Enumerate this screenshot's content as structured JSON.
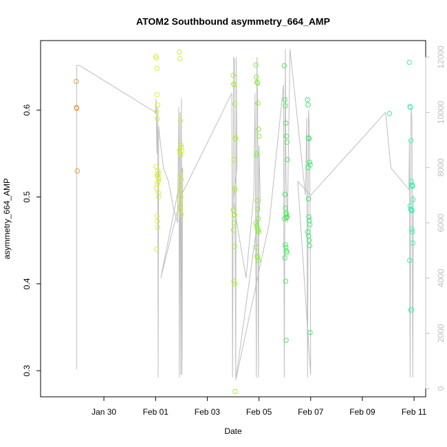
{
  "chart_data": {
    "type": "scatter",
    "title": "ATOM2 Southbound asymmetry_664_AMP",
    "xlabel": "Date",
    "ylabel": "asymmetry_664_AMP",
    "x_ticks": [
      "Jan 30",
      "Feb 01",
      "Feb 03",
      "Feb 05",
      "Feb 07",
      "Feb 09",
      "Feb 11"
    ],
    "x_tick_days": [
      2,
      4,
      6,
      8,
      10,
      12,
      14
    ],
    "xlim_days": [
      -0.45,
      14.45
    ],
    "ylim": [
      0.27,
      0.68
    ],
    "y_ticks": [
      0.3,
      0.4,
      0.5,
      0.6
    ],
    "y_tick_labels": [
      "0.3",
      "0.4",
      "0.5",
      "0.6"
    ],
    "y2_ticks": [
      0,
      2000,
      4000,
      6000,
      8000,
      10000,
      12000
    ],
    "y2lim": [
      -300,
      12600
    ],
    "grid": false,
    "point_colors": {
      "Jan 28": "#f39a3c",
      "Feb 01": "#dcec3c",
      "Feb 02": "#cdef3c",
      "Feb 03": "#a8f03c",
      "Feb 04": "#87f03c",
      "Feb 05": "#4de85a",
      "Feb 06": "#3ee873",
      "Feb 10": "#3de8a6",
      "Feb 11": "#3cf0b4"
    },
    "line_color": "#bdbdbd",
    "series": [
      {
        "group": "Jan 28",
        "x": [
          0.93,
          0.94,
          0.95,
          0.97
        ],
        "y": [
          0.633,
          0.603,
          0.602,
          0.53
        ]
      },
      {
        "group": "Feb 01",
        "x": [
          4.01,
          4.03,
          4.05,
          4.06,
          4.08,
          4.04,
          4.07,
          4.02,
          4.09,
          4.11,
          4.06,
          4.12,
          4.1,
          4.03,
          4.05,
          4.07,
          4.08,
          4.04,
          4.09,
          4.1,
          4.06,
          4.11,
          4.13
        ],
        "y": [
          0.662,
          0.66,
          0.648,
          0.618,
          0.606,
          0.598,
          0.59,
          0.535,
          0.53,
          0.527,
          0.525,
          0.521,
          0.518,
          0.51,
          0.478,
          0.472,
          0.465,
          0.44,
          0.525,
          0.522,
          0.515,
          0.505,
          0.5
        ]
      },
      {
        "group": "Feb 02",
        "x": [
          4.92,
          4.94,
          4.96,
          4.98,
          5.0,
          4.93,
          4.95,
          4.97,
          4.99,
          4.94,
          4.96,
          4.98,
          4.93,
          4.97,
          4.95,
          4.99,
          5.01,
          4.96
        ],
        "y": [
          0.667,
          0.659,
          0.588,
          0.56,
          0.557,
          0.554,
          0.55,
          0.525,
          0.52,
          0.512,
          0.505,
          0.5,
          0.495,
          0.49,
          0.485,
          0.48,
          0.553,
          0.548
        ]
      },
      {
        "group": "Feb 03",
        "x": [
          7.0,
          7.02,
          7.04,
          7.06,
          7.08,
          7.1,
          7.03,
          7.05,
          7.07,
          7.01,
          7.04,
          7.06,
          7.02,
          7.05,
          7.03,
          7.07,
          7.08,
          7.04
        ],
        "y": [
          0.64,
          0.63,
          0.629,
          0.607,
          0.568,
          0.567,
          0.543,
          0.51,
          0.508,
          0.485,
          0.48,
          0.479,
          0.462,
          0.443,
          0.403,
          0.4,
          0.276,
          0.47
        ]
      },
      {
        "group": "Feb 04",
        "x": [
          7.88,
          7.9,
          7.92,
          7.94,
          7.96,
          7.98,
          8.0,
          7.91,
          7.93,
          7.95,
          7.97,
          7.89,
          7.92,
          7.94,
          7.96,
          7.98,
          7.9,
          7.93,
          7.95,
          7.97,
          7.99,
          7.91
        ],
        "y": [
          0.652,
          0.638,
          0.632,
          0.631,
          0.608,
          0.578,
          0.57,
          0.548,
          0.496,
          0.486,
          0.475,
          0.47,
          0.467,
          0.464,
          0.462,
          0.46,
          0.442,
          0.432,
          0.43,
          0.427,
          0.46,
          0.55
        ]
      },
      {
        "group": "Feb 05",
        "x": [
          8.98,
          9.0,
          9.02,
          9.04,
          9.06,
          9.08,
          9.1,
          9.01,
          9.03,
          9.05,
          9.07,
          8.99,
          9.02,
          9.04,
          9.06,
          9.08,
          9.0,
          9.03,
          9.05,
          9.07,
          9.09
        ],
        "y": [
          0.651,
          0.612,
          0.605,
          0.585,
          0.57,
          0.563,
          0.543,
          0.503,
          0.487,
          0.482,
          0.476,
          0.475,
          0.445,
          0.442,
          0.438,
          0.436,
          0.43,
          0.403,
          0.335,
          0.48,
          0.477
        ]
      },
      {
        "group": "Feb 06",
        "x": [
          9.88,
          9.9,
          9.92,
          9.94,
          9.96,
          9.98,
          9.91,
          9.93,
          9.95,
          9.97,
          9.89,
          9.92,
          9.94,
          9.96,
          9.98,
          9.9
        ],
        "y": [
          0.612,
          0.606,
          0.568,
          0.567,
          0.54,
          0.537,
          0.498,
          0.477,
          0.473,
          0.468,
          0.46,
          0.455,
          0.45,
          0.444,
          0.344,
          0.534
        ]
      },
      {
        "group": "Feb 10",
        "x": [
          13.05
        ],
        "y": [
          0.596
        ]
      },
      {
        "group": "Feb 11",
        "x": [
          13.82,
          13.84,
          13.86,
          13.88,
          13.9,
          13.92,
          13.94,
          13.96,
          13.85,
          13.87,
          13.89,
          13.91,
          13.93,
          13.95,
          13.83,
          13.88,
          13.9,
          13.92,
          13.94
        ],
        "y": [
          0.655,
          0.604,
          0.603,
          0.565,
          0.518,
          0.514,
          0.513,
          0.497,
          0.49,
          0.486,
          0.485,
          0.463,
          0.46,
          0.447,
          0.427,
          0.37,
          0.37,
          0.484,
          0.512
        ]
      }
    ],
    "pressure_y2": {
      "x": [
        0.95,
        0.95,
        1.05,
        4.0,
        4.02,
        4.05,
        4.08,
        4.1,
        4.12,
        4.15,
        4.2,
        4.3,
        4.5,
        4.7,
        4.85,
        4.9,
        4.92,
        4.95,
        4.98,
        5.0,
        5.02,
        5.05,
        4.2,
        5.0,
        6.95,
        6.98,
        7.02,
        7.05,
        7.1,
        7.12,
        7.15,
        7.0,
        7.5,
        7.8,
        7.85,
        7.9,
        7.92,
        7.95,
        7.98,
        8.0,
        8.05,
        7.1,
        8.4,
        8.95,
        8.98,
        9.02,
        9.05,
        9.1,
        9.2,
        9.8,
        9.85,
        9.88,
        9.92,
        9.95,
        9.98,
        10.0,
        9.5,
        10.0,
        12.9,
        13.1,
        13.8,
        13.82,
        13.85,
        13.88,
        13.9,
        13.92,
        13.95,
        13.98
      ],
      "y": [
        700,
        11700,
        11700,
        10000,
        10500,
        8500,
        10200,
        400,
        9500,
        9200,
        8800,
        8000,
        7500,
        6500,
        6000,
        10200,
        400,
        10000,
        500,
        10500,
        500,
        8000,
        4000,
        7000,
        10700,
        400,
        12000,
        11900,
        400,
        12000,
        8000,
        6800,
        4000,
        7000,
        10700,
        400,
        12000,
        10000,
        400,
        8800,
        6800,
        300,
        6000,
        11000,
        400,
        12300,
        7500,
        6000,
        12300,
        7000,
        9800,
        400,
        10100,
        9500,
        6300,
        500,
        7500,
        7000,
        10000,
        8000,
        7200,
        9000,
        400,
        9800,
        10100,
        9600,
        400,
        7000
      ]
    }
  }
}
